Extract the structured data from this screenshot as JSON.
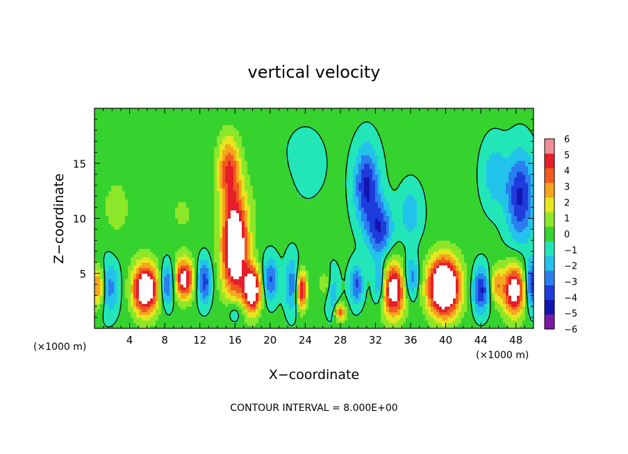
{
  "chart_data": {
    "type": "heatmap",
    "title": "vertical velocity",
    "xlabel": "X−coordinate",
    "ylabel": "Z−coordinate",
    "x_unit_left": "(×1000 m)",
    "x_unit_right": "(×1000 m)",
    "footer": "CONTOUR INTERVAL = 8.000E+00",
    "xlim": [
      0,
      50
    ],
    "ylim": [
      0,
      20
    ],
    "xticks": [
      4,
      8,
      12,
      16,
      20,
      24,
      28,
      32,
      36,
      40,
      44,
      48
    ],
    "xtick_labels": [
      "4",
      "8",
      "12",
      "16",
      "20",
      "24",
      "28",
      "32",
      "36",
      "40",
      "44",
      "48"
    ],
    "yticks": [
      5,
      10,
      15
    ],
    "ytick_labels": [
      "5",
      "10",
      "15"
    ],
    "colorbar": {
      "range": [
        -6,
        6
      ],
      "levels": [
        -6,
        -5,
        -4,
        -3,
        -2,
        -1,
        0,
        1,
        2,
        3,
        4,
        5,
        6
      ],
      "tick_labels": [
        "6",
        "5",
        "4",
        "3",
        "2",
        "1",
        "0",
        "−1",
        "−2",
        "−3",
        "−4",
        "−5",
        "−6"
      ],
      "colors": [
        "#7a1aa8",
        "#1414b0",
        "#1e3cdc",
        "#2a7ff0",
        "#22c3ea",
        "#22e6b8",
        "#36d22e",
        "#8ce62a",
        "#e6e61e",
        "#f5a51e",
        "#f25a1e",
        "#e61e2a",
        "#f08c96"
      ]
    },
    "background_value": 0.3,
    "features": [
      {
        "x": 0.5,
        "z": 3.8,
        "sx": 0.9,
        "sz": 2.0,
        "w": 6.5
      },
      {
        "x": 1.2,
        "z": 3.8,
        "sx": 1.4,
        "sz": 2.4,
        "w": -4.0
      },
      {
        "x": 5.8,
        "z": 3.6,
        "sx": 1.5,
        "sz": 2.3,
        "w": 8.0
      },
      {
        "x": 10.2,
        "z": 4.5,
        "sx": 1.1,
        "sz": 1.8,
        "w": 6.5
      },
      {
        "x": 8.3,
        "z": 4.0,
        "sx": 0.8,
        "sz": 1.9,
        "w": -4.0
      },
      {
        "x": 12.5,
        "z": 4.3,
        "sx": 0.8,
        "sz": 2.0,
        "w": -4.0
      },
      {
        "x": 16.0,
        "z": 7.5,
        "sx": 1.5,
        "sz": 4.5,
        "w": 8.5
      },
      {
        "x": 15.3,
        "z": 14.5,
        "sx": 1.3,
        "sz": 3.0,
        "w": 4.5
      },
      {
        "x": 18.0,
        "z": 3.5,
        "sx": 1.0,
        "sz": 2.0,
        "w": 7.5
      },
      {
        "x": 16.0,
        "z": 1.5,
        "sx": 1.0,
        "sz": 1.2,
        "w": -2.0
      },
      {
        "x": 20.0,
        "z": 4.5,
        "sx": 0.9,
        "sz": 2.0,
        "w": -3.5
      },
      {
        "x": 23.6,
        "z": 3.5,
        "sx": 0.6,
        "sz": 1.7,
        "w": 6.0
      },
      {
        "x": 22.5,
        "z": 4.0,
        "sx": 0.8,
        "sz": 2.5,
        "w": -3.0
      },
      {
        "x": 27.0,
        "z": 3.5,
        "sx": 0.8,
        "sz": 2.0,
        "w": -3.0
      },
      {
        "x": 26.5,
        "z": 4.0,
        "sx": 0.8,
        "sz": 1.5,
        "w": 2.5
      },
      {
        "x": 28.0,
        "z": 1.5,
        "sx": 0.6,
        "sz": 0.8,
        "w": 4.5
      },
      {
        "x": 29.8,
        "z": 4.0,
        "sx": 0.8,
        "sz": 1.8,
        "w": -3.5
      },
      {
        "x": 34.0,
        "z": 3.5,
        "sx": 1.5,
        "sz": 2.5,
        "w": 7.0
      },
      {
        "x": 32.5,
        "z": 4.0,
        "sx": 0.8,
        "sz": 2.0,
        "w": -4.0
      },
      {
        "x": 36.0,
        "z": 4.5,
        "sx": 0.9,
        "sz": 2.0,
        "w": -3.5
      },
      {
        "x": 39.8,
        "z": 3.8,
        "sx": 1.8,
        "sz": 2.6,
        "w": 10.0
      },
      {
        "x": 44.0,
        "z": 3.5,
        "sx": 0.9,
        "sz": 2.0,
        "w": -4.5
      },
      {
        "x": 45.8,
        "z": 4.0,
        "sx": 0.7,
        "sz": 1.6,
        "w": 3.0
      },
      {
        "x": 47.8,
        "z": 3.5,
        "sx": 1.3,
        "sz": 2.3,
        "w": 7.0
      },
      {
        "x": 49.8,
        "z": 4.0,
        "sx": 0.8,
        "sz": 2.2,
        "w": -4.5
      },
      {
        "x": 31.0,
        "z": 13.0,
        "sx": 1.4,
        "sz": 3.5,
        "w": -4.5
      },
      {
        "x": 32.5,
        "z": 9.0,
        "sx": 1.4,
        "sz": 2.5,
        "w": -4.0
      },
      {
        "x": 36.0,
        "z": 10.5,
        "sx": 1.3,
        "sz": 2.5,
        "w": -2.0
      },
      {
        "x": 48.5,
        "z": 12.0,
        "sx": 1.6,
        "sz": 4.0,
        "w": -4.5
      },
      {
        "x": 45.5,
        "z": 14.0,
        "sx": 1.4,
        "sz": 3.0,
        "w": -2.0
      },
      {
        "x": 2.5,
        "z": 11.0,
        "sx": 2.0,
        "sz": 3.5,
        "w": 1.0
      },
      {
        "x": 10.0,
        "z": 10.5,
        "sx": 2.0,
        "sz": 3.0,
        "w": 0.8
      },
      {
        "x": 20.0,
        "z": 12.0,
        "sx": 2.2,
        "sz": 3.0,
        "w": 0.6
      },
      {
        "x": 24.0,
        "z": 15.0,
        "sx": 3.0,
        "sz": 4.0,
        "w": -0.6
      }
    ]
  }
}
